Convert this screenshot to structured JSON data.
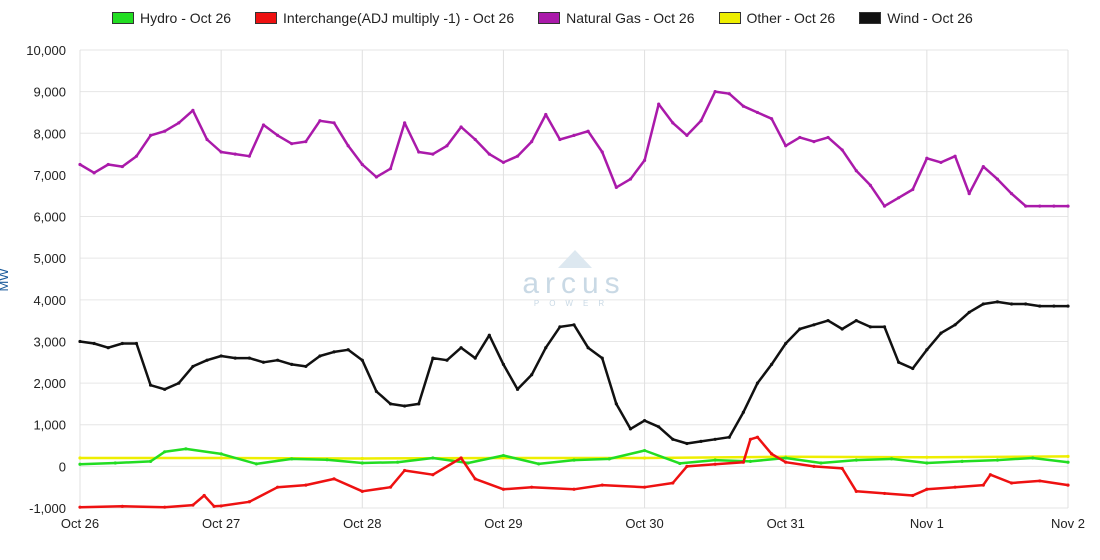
{
  "chart_data": {
    "type": "line",
    "title": "",
    "xlabel": "",
    "ylabel": "MW",
    "ylim": [
      -1000,
      10000
    ],
    "yticks": [
      "10,000",
      "9,000",
      "8,000",
      "7,000",
      "6,000",
      "5,000",
      "4,000",
      "3,000",
      "2,000",
      "1,000",
      "0",
      "-1,000"
    ],
    "ytick_values": [
      10000,
      9000,
      8000,
      7000,
      6000,
      5000,
      4000,
      3000,
      2000,
      1000,
      0,
      -1000
    ],
    "xticks": [
      "Oct 26",
      "Oct 27",
      "Oct 28",
      "Oct 29",
      "Oct 30",
      "Oct 31",
      "Nov 1",
      "Nov 2"
    ],
    "x_unit": "day",
    "grid": true,
    "legend_position": "top",
    "watermark": "arcus",
    "watermark_sub": "POWER",
    "series": [
      {
        "name": "Hydro - Oct 26",
        "color": "#22dd22",
        "x": [
          0,
          0.25,
          0.5,
          0.6,
          0.75,
          1,
          1.25,
          1.5,
          1.75,
          2,
          2.25,
          2.5,
          2.75,
          3,
          3.25,
          3.5,
          3.75,
          4,
          4.25,
          4.5,
          4.75,
          5,
          5.25,
          5.5,
          5.75,
          6,
          6.25,
          6.5,
          6.75,
          7
        ],
        "y": [
          50,
          80,
          120,
          350,
          420,
          300,
          60,
          180,
          160,
          80,
          100,
          200,
          80,
          260,
          60,
          150,
          180,
          380,
          70,
          150,
          120,
          200,
          80,
          150,
          180,
          80,
          120,
          150,
          200,
          100
        ]
      },
      {
        "name": "Interchange(ADJ multiply -1) - Oct 26",
        "color": "#ee1111",
        "x": [
          0,
          0.3,
          0.6,
          0.8,
          0.88,
          0.95,
          1.0,
          1.2,
          1.4,
          1.6,
          1.8,
          2.0,
          2.2,
          2.3,
          2.5,
          2.7,
          2.8,
          3.0,
          3.2,
          3.5,
          3.7,
          4.0,
          4.2,
          4.3,
          4.5,
          4.7,
          4.75,
          4.8,
          4.9,
          5.0,
          5.2,
          5.4,
          5.5,
          5.7,
          5.9,
          6.0,
          6.2,
          6.4,
          6.45,
          6.6,
          6.8,
          7.0
        ],
        "y": [
          -980,
          -960,
          -980,
          -930,
          -700,
          -960,
          -950,
          -850,
          -500,
          -450,
          -300,
          -600,
          -500,
          -100,
          -200,
          200,
          -300,
          -550,
          -500,
          -550,
          -450,
          -500,
          -400,
          0,
          50,
          100,
          650,
          700,
          300,
          100,
          0,
          -50,
          -600,
          -650,
          -700,
          -550,
          -500,
          -450,
          -200,
          -400,
          -350,
          -450
        ]
      },
      {
        "name": "Natural Gas - Oct 26",
        "color": "#aa1aaa",
        "x": [
          0,
          0.1,
          0.2,
          0.3,
          0.4,
          0.5,
          0.6,
          0.7,
          0.8,
          0.9,
          1.0,
          1.1,
          1.2,
          1.3,
          1.4,
          1.5,
          1.6,
          1.7,
          1.8,
          1.9,
          2.0,
          2.1,
          2.2,
          2.3,
          2.4,
          2.5,
          2.6,
          2.7,
          2.8,
          2.9,
          3.0,
          3.1,
          3.2,
          3.3,
          3.4,
          3.5,
          3.6,
          3.7,
          3.8,
          3.9,
          4.0,
          4.1,
          4.2,
          4.3,
          4.4,
          4.5,
          4.6,
          4.7,
          4.8,
          4.9,
          5.0,
          5.1,
          5.2,
          5.3,
          5.4,
          5.5,
          5.6,
          5.7,
          5.8,
          5.9,
          6.0,
          6.1,
          6.2,
          6.3,
          6.4,
          6.5,
          6.6,
          6.7,
          6.8,
          6.9,
          7.0
        ],
        "y": [
          7250,
          7050,
          7250,
          7200,
          7450,
          7950,
          8050,
          8250,
          8550,
          7850,
          7550,
          7500,
          7450,
          8200,
          7950,
          7750,
          7800,
          8300,
          8250,
          7700,
          7250,
          6950,
          7150,
          8250,
          7550,
          7500,
          7700,
          8150,
          7850,
          7500,
          7300,
          7450,
          7800,
          8450,
          7850,
          7950,
          8050,
          7550,
          6700,
          6900,
          7350,
          8700,
          8250,
          7950,
          8300,
          9000,
          8950,
          8650,
          8500,
          8350,
          7700,
          7900,
          7800,
          7900,
          7600,
          7100,
          6750,
          6250,
          6450,
          6650,
          7400,
          7300,
          7450,
          6550,
          7200,
          6900,
          6550,
          6250,
          6250,
          6250,
          6250
        ]
      },
      {
        "name": "Other - Oct 26",
        "color": "#eeee00",
        "x": [
          0,
          1,
          2,
          3,
          4,
          5,
          6,
          7
        ],
        "y": [
          200,
          200,
          190,
          200,
          200,
          230,
          220,
          240
        ]
      },
      {
        "name": "Wind - Oct 26",
        "color": "#111111",
        "x": [
          0,
          0.1,
          0.2,
          0.3,
          0.4,
          0.5,
          0.6,
          0.7,
          0.8,
          0.9,
          1.0,
          1.1,
          1.2,
          1.3,
          1.4,
          1.5,
          1.6,
          1.7,
          1.8,
          1.9,
          2.0,
          2.1,
          2.2,
          2.3,
          2.4,
          2.5,
          2.6,
          2.7,
          2.8,
          2.9,
          3.0,
          3.1,
          3.2,
          3.3,
          3.4,
          3.5,
          3.6,
          3.7,
          3.8,
          3.9,
          4.0,
          4.1,
          4.2,
          4.3,
          4.4,
          4.5,
          4.6,
          4.7,
          4.8,
          4.9,
          5.0,
          5.1,
          5.2,
          5.3,
          5.4,
          5.5,
          5.6,
          5.7,
          5.8,
          5.9,
          6.0,
          6.1,
          6.2,
          6.3,
          6.4,
          6.5,
          6.6,
          6.7,
          6.8,
          6.9,
          7.0
        ],
        "y": [
          3000,
          2950,
          2850,
          2950,
          2950,
          1950,
          1850,
          2000,
          2400,
          2550,
          2650,
          2600,
          2600,
          2500,
          2550,
          2450,
          2400,
          2650,
          2750,
          2800,
          2550,
          1800,
          1500,
          1450,
          1500,
          2600,
          2550,
          2850,
          2600,
          3150,
          2450,
          1850,
          2200,
          2850,
          3350,
          3400,
          2850,
          2600,
          1500,
          900,
          1100,
          950,
          650,
          550,
          600,
          650,
          700,
          1300,
          2000,
          2450,
          2950,
          3300,
          3400,
          3500,
          3300,
          3500,
          3350,
          3350,
          2500,
          2350,
          2800,
          3200,
          3400,
          3700,
          3900,
          3950,
          3900,
          3900,
          3850,
          3850,
          3850
        ]
      }
    ]
  }
}
